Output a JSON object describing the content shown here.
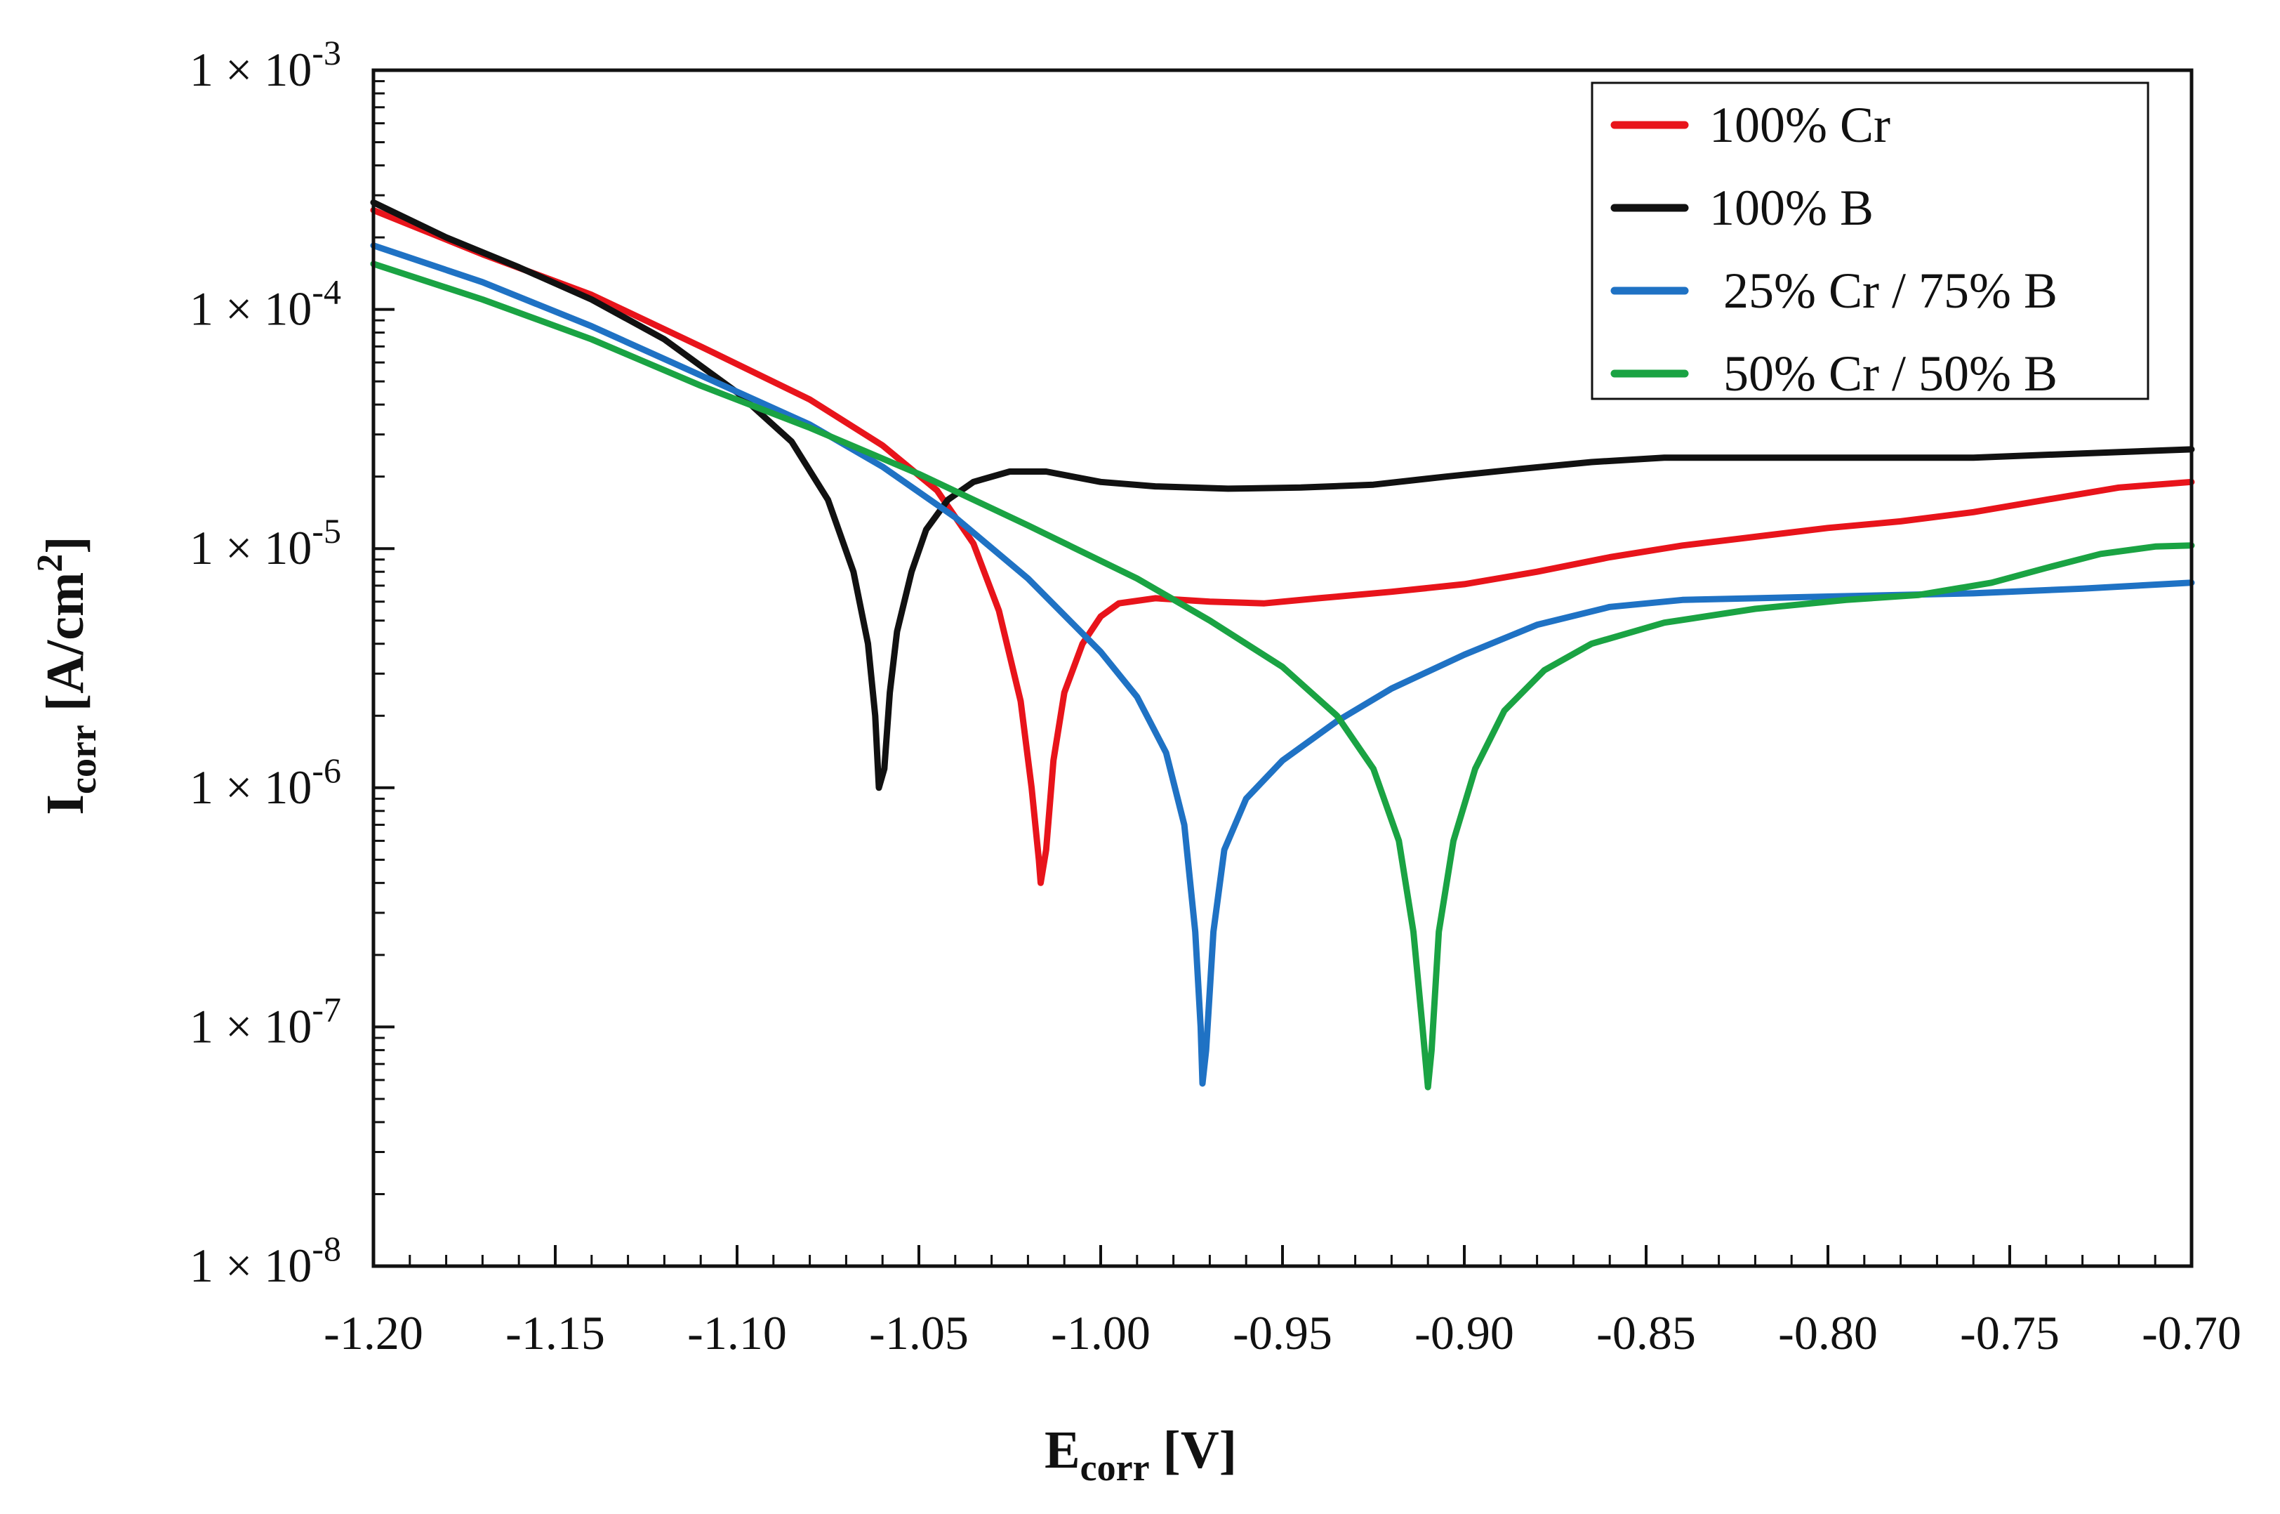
{
  "chart_data": {
    "type": "line",
    "xlabel": {
      "main": "E",
      "sub": "corr",
      "unit": " [V]"
    },
    "ylabel": {
      "main": "I",
      "sub": "corr",
      "unit": " [A/cm",
      "sup": "2",
      "close": "]"
    },
    "xlim": [
      -1.2,
      -0.7
    ],
    "ylim": [
      1e-08,
      0.001
    ],
    "yscale": "log",
    "x_ticks": [
      -1.2,
      -1.15,
      -1.1,
      -1.05,
      -1.0,
      -0.95,
      -0.9,
      -0.85,
      -0.8,
      -0.75,
      -0.7
    ],
    "x_tick_labels": [
      "-1.20",
      "-1.15",
      "-1.10",
      "-1.05",
      "-1.00",
      "-0.95",
      "-0.90",
      "-0.85",
      "-0.80",
      "-0.75",
      "-0.70"
    ],
    "y_ticks": [
      {
        "mantissa": "1 × 10",
        "exponent": "-3",
        "value": 0.001
      },
      {
        "mantissa": "1 × 10",
        "exponent": "-4",
        "value": 0.0001
      },
      {
        "mantissa": "1 × 10",
        "exponent": "-5",
        "value": 1e-05
      },
      {
        "mantissa": "1 × 10",
        "exponent": "-6",
        "value": 1e-06
      },
      {
        "mantissa": "1 × 10",
        "exponent": "-7",
        "value": 1e-07
      },
      {
        "mantissa": "1 × 10",
        "exponent": "-8",
        "value": 1e-08
      }
    ],
    "legend_position": "top-right",
    "series": [
      {
        "name": "100% Cr",
        "color": "#e8141b",
        "points": [
          [
            -1.2,
            0.00026
          ],
          [
            -1.17,
            0.00017
          ],
          [
            -1.14,
            0.000115
          ],
          [
            -1.11,
            7e-05
          ],
          [
            -1.08,
            4.2e-05
          ],
          [
            -1.06,
            2.7e-05
          ],
          [
            -1.045,
            1.75e-05
          ],
          [
            -1.035,
            1.05e-05
          ],
          [
            -1.028,
            5.5e-06
          ],
          [
            -1.022,
            2.3e-06
          ],
          [
            -1.019,
            1e-06
          ],
          [
            -1.017,
            5e-07
          ],
          [
            -1.0165,
            4e-07
          ],
          [
            -1.015,
            5.5e-07
          ],
          [
            -1.013,
            1.3e-06
          ],
          [
            -1.01,
            2.5e-06
          ],
          [
            -1.005,
            4e-06
          ],
          [
            -1.0,
            5.2e-06
          ],
          [
            -0.995,
            5.9e-06
          ],
          [
            -0.985,
            6.2e-06
          ],
          [
            -0.97,
            6e-06
          ],
          [
            -0.955,
            5.9e-06
          ],
          [
            -0.94,
            6.2e-06
          ],
          [
            -0.92,
            6.6e-06
          ],
          [
            -0.9,
            7.1e-06
          ],
          [
            -0.88,
            8e-06
          ],
          [
            -0.86,
            9.2e-06
          ],
          [
            -0.84,
            1.03e-05
          ],
          [
            -0.82,
            1.12e-05
          ],
          [
            -0.8,
            1.22e-05
          ],
          [
            -0.78,
            1.3e-05
          ],
          [
            -0.76,
            1.42e-05
          ],
          [
            -0.74,
            1.6e-05
          ],
          [
            -0.72,
            1.8e-05
          ],
          [
            -0.7,
            1.9e-05
          ]
        ]
      },
      {
        "name": "100% B",
        "color": "#111111",
        "points": [
          [
            -1.2,
            0.00028
          ],
          [
            -1.18,
            0.0002
          ],
          [
            -1.16,
            0.00015
          ],
          [
            -1.14,
            0.00011
          ],
          [
            -1.12,
            7.5e-05
          ],
          [
            -1.1,
            4.5e-05
          ],
          [
            -1.085,
            2.8e-05
          ],
          [
            -1.075,
            1.6e-05
          ],
          [
            -1.068,
            8e-06
          ],
          [
            -1.064,
            4e-06
          ],
          [
            -1.062,
            2e-06
          ],
          [
            -1.061,
            1e-06
          ],
          [
            -1.0595,
            1.2e-06
          ],
          [
            -1.058,
            2.5e-06
          ],
          [
            -1.056,
            4.5e-06
          ],
          [
            -1.052,
            8e-06
          ],
          [
            -1.048,
            1.2e-05
          ],
          [
            -1.042,
            1.6e-05
          ],
          [
            -1.035,
            1.9e-05
          ],
          [
            -1.025,
            2.1e-05
          ],
          [
            -1.015,
            2.1e-05
          ],
          [
            -1.0,
            1.9e-05
          ],
          [
            -0.985,
            1.82e-05
          ],
          [
            -0.965,
            1.78e-05
          ],
          [
            -0.945,
            1.8e-05
          ],
          [
            -0.925,
            1.85e-05
          ],
          [
            -0.905,
            2e-05
          ],
          [
            -0.885,
            2.15e-05
          ],
          [
            -0.865,
            2.3e-05
          ],
          [
            -0.845,
            2.4e-05
          ],
          [
            -0.82,
            2.4e-05
          ],
          [
            -0.79,
            2.4e-05
          ],
          [
            -0.76,
            2.4e-05
          ],
          [
            -0.73,
            2.5e-05
          ],
          [
            -0.7,
            2.6e-05
          ]
        ]
      },
      {
        "name": "25% Cr / 75% B",
        "color": "#1f72c4",
        "points": [
          [
            -1.2,
            0.000185
          ],
          [
            -1.17,
            0.00013
          ],
          [
            -1.14,
            8.5e-05
          ],
          [
            -1.11,
            5.3e-05
          ],
          [
            -1.08,
            3.3e-05
          ],
          [
            -1.06,
            2.2e-05
          ],
          [
            -1.04,
            1.35e-05
          ],
          [
            -1.02,
            7.5e-06
          ],
          [
            -1.0,
            3.7e-06
          ],
          [
            -0.99,
            2.4e-06
          ],
          [
            -0.982,
            1.4e-06
          ],
          [
            -0.977,
            7e-07
          ],
          [
            -0.974,
            2.5e-07
          ],
          [
            -0.9725,
            1e-07
          ],
          [
            -0.972,
            5.8e-08
          ],
          [
            -0.971,
            8e-08
          ],
          [
            -0.969,
            2.5e-07
          ],
          [
            -0.966,
            5.5e-07
          ],
          [
            -0.96,
            9e-07
          ],
          [
            -0.95,
            1.3e-06
          ],
          [
            -0.935,
            1.9e-06
          ],
          [
            -0.92,
            2.6e-06
          ],
          [
            -0.9,
            3.6e-06
          ],
          [
            -0.88,
            4.8e-06
          ],
          [
            -0.86,
            5.7e-06
          ],
          [
            -0.84,
            6.1e-06
          ],
          [
            -0.8,
            6.3e-06
          ],
          [
            -0.76,
            6.5e-06
          ],
          [
            -0.73,
            6.8e-06
          ],
          [
            -0.7,
            7.2e-06
          ]
        ]
      },
      {
        "name": "50% Cr / 50% B",
        "color": "#1aa343",
        "points": [
          [
            -1.2,
            0.000155
          ],
          [
            -1.17,
            0.00011
          ],
          [
            -1.14,
            7.5e-05
          ],
          [
            -1.11,
            4.8e-05
          ],
          [
            -1.08,
            3.2e-05
          ],
          [
            -1.05,
            2.05e-05
          ],
          [
            -1.02,
            1.25e-05
          ],
          [
            -0.99,
            7.5e-06
          ],
          [
            -0.97,
            5e-06
          ],
          [
            -0.95,
            3.2e-06
          ],
          [
            -0.935,
            2e-06
          ],
          [
            -0.925,
            1.2e-06
          ],
          [
            -0.918,
            6e-07
          ],
          [
            -0.914,
            2.5e-07
          ],
          [
            -0.9115,
            1e-07
          ],
          [
            -0.91,
            5.6e-08
          ],
          [
            -0.909,
            8e-08
          ],
          [
            -0.907,
            2.5e-07
          ],
          [
            -0.903,
            6e-07
          ],
          [
            -0.897,
            1.2e-06
          ],
          [
            -0.889,
            2.1e-06
          ],
          [
            -0.878,
            3.1e-06
          ],
          [
            -0.865,
            4e-06
          ],
          [
            -0.845,
            4.9e-06
          ],
          [
            -0.82,
            5.6e-06
          ],
          [
            -0.795,
            6.1e-06
          ],
          [
            -0.775,
            6.4e-06
          ],
          [
            -0.755,
            7.2e-06
          ],
          [
            -0.74,
            8.3e-06
          ],
          [
            -0.725,
            9.5e-06
          ],
          [
            -0.71,
            1.02e-05
          ],
          [
            -0.7,
            1.03e-05
          ]
        ]
      }
    ]
  }
}
